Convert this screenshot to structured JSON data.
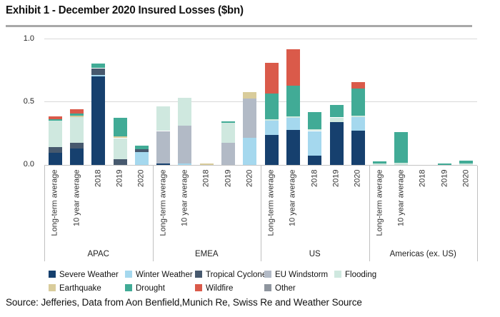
{
  "title": "Exhibit 1 - December 2020 Insured Losses ($bn)",
  "source": "Source: Jefferies, Data from Aon Benfield,Munich Re, Swiss Re and Weather Source",
  "chart_data": {
    "type": "bar",
    "stacked": true,
    "title": "Exhibit 1 - December 2020 Insured Losses ($bn)",
    "ylabel": "",
    "ylim": [
      0,
      1.0
    ],
    "yticks": [
      "0.0",
      "0.5",
      "1.0"
    ],
    "grid": "horizontal",
    "legend_position": "bottom",
    "groups": [
      "APAC",
      "EMEA",
      "US",
      "Americas (ex. US)"
    ],
    "bar_labels": [
      "Long-term average",
      "10 year average",
      "2018",
      "2019",
      "2020"
    ],
    "series": [
      {
        "name": "Severe Weather",
        "color": "#16406e",
        "values": [
          [
            0.095,
            0.13,
            0.705,
            0,
            0
          ],
          [
            0.01,
            0,
            0,
            0,
            0
          ],
          [
            0.24,
            0.28,
            0.075,
            0.34,
            0.275
          ],
          [
            0,
            0,
            0,
            0,
            0
          ]
        ]
      },
      {
        "name": "Winter Weather",
        "color": "#a5d8ee",
        "values": [
          [
            0,
            0,
            0.01,
            0,
            0.1
          ],
          [
            0,
            0.01,
            0,
            0,
            0.215
          ],
          [
            0.115,
            0.095,
            0.195,
            0,
            0.105
          ],
          [
            0,
            0,
            0,
            0,
            0
          ]
        ]
      },
      {
        "name": "Tropical Cyclone",
        "color": "#47596e",
        "values": [
          [
            0.045,
            0.048,
            0.055,
            0.048,
            0.027
          ],
          [
            0,
            0,
            0,
            0,
            0
          ],
          [
            0,
            0,
            0,
            0,
            0
          ],
          [
            0,
            0,
            0,
            0,
            0
          ]
        ]
      },
      {
        "name": "EU Windstorm",
        "color": "#b2bac6",
        "values": [
          [
            0,
            0,
            0,
            0,
            0
          ],
          [
            0.26,
            0.3,
            0,
            0.175,
            0.315
          ],
          [
            0,
            0,
            0,
            0,
            0
          ],
          [
            0,
            0,
            0,
            0,
            0
          ]
        ]
      },
      {
        "name": "Flooding",
        "color": "#cfe8df",
        "values": [
          [
            0.21,
            0.205,
            0,
            0.165,
            0
          ],
          [
            0.195,
            0.225,
            0,
            0.16,
            0
          ],
          [
            0.01,
            0.01,
            0.012,
            0.038,
            0.013
          ],
          [
            0.01,
            0.015,
            0,
            0,
            0.01
          ]
        ]
      },
      {
        "name": "Earthquake",
        "color": "#d9cc9b",
        "values": [
          [
            0,
            0.01,
            0,
            0.013,
            0
          ],
          [
            0,
            0,
            0.01,
            0,
            0.05
          ],
          [
            0,
            0,
            0,
            0,
            0
          ],
          [
            0,
            0,
            0,
            0,
            0
          ]
        ]
      },
      {
        "name": "Drought",
        "color": "#41ab96",
        "values": [
          [
            0.015,
            0.017,
            0.035,
            0.148,
            0.025
          ],
          [
            0,
            0,
            0,
            0.01,
            0
          ],
          [
            0.205,
            0.245,
            0.14,
            0.1,
            0.215
          ],
          [
            0.02,
            0.245,
            0,
            0.01,
            0.025
          ]
        ]
      },
      {
        "name": "Wildfire",
        "color": "#da5a4a",
        "values": [
          [
            0.02,
            0.035,
            0,
            0,
            0
          ],
          [
            0,
            0,
            0,
            0,
            0
          ],
          [
            0.24,
            0.29,
            0,
            0,
            0.05
          ],
          [
            0,
            0,
            0,
            0,
            0
          ]
        ]
      },
      {
        "name": "Other",
        "color": "#8e959e",
        "values": [
          [
            0,
            0,
            0,
            0,
            0
          ],
          [
            0,
            0,
            0,
            0,
            0
          ],
          [
            0,
            0,
            0,
            0,
            0
          ],
          [
            0,
            0,
            0,
            0,
            0
          ]
        ]
      }
    ]
  }
}
